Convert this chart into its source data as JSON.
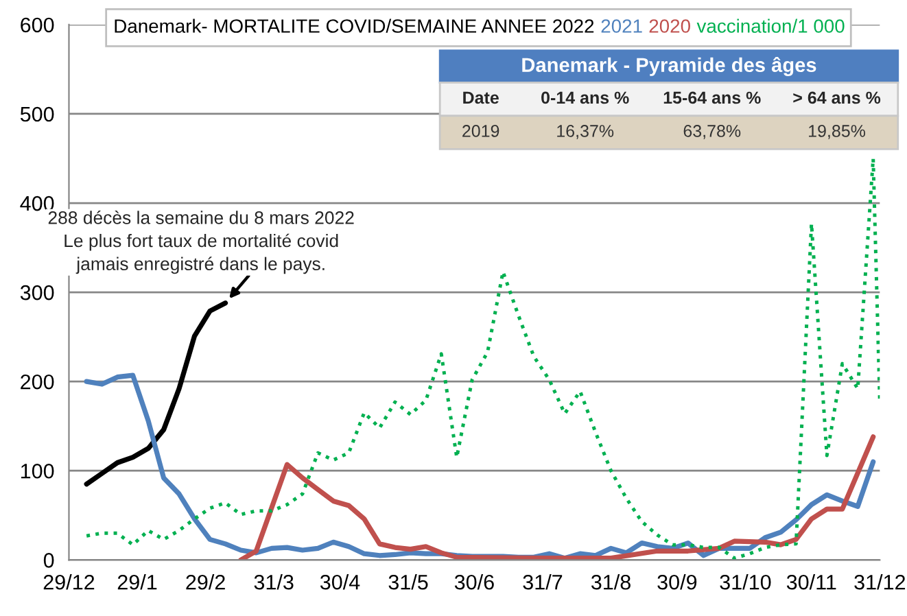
{
  "chart_data": {
    "type": "line",
    "title": "Danemark- MORTALITE COVID/SEMAINE ANNEE",
    "xlim": [
      "2019-12-29",
      "2020-12-31"
    ],
    "xticks": [
      {
        "value": "2019-12-29",
        "label": "29/12"
      },
      {
        "value": "2020-01-29",
        "label": "29/1"
      },
      {
        "value": "2020-02-29",
        "label": "29/2"
      },
      {
        "value": "2020-03-31",
        "label": "31/3"
      },
      {
        "value": "2020-04-30",
        "label": "30/4"
      },
      {
        "value": "2020-05-31",
        "label": "31/5"
      },
      {
        "value": "2020-06-30",
        "label": "30/6"
      },
      {
        "value": "2020-07-31",
        "label": "31/7"
      },
      {
        "value": "2020-08-31",
        "label": "31/8"
      },
      {
        "value": "2020-09-30",
        "label": "30/9"
      },
      {
        "value": "2020-10-31",
        "label": "31/10"
      },
      {
        "value": "2020-11-30",
        "label": "30/11"
      },
      {
        "value": "2020-12-31",
        "label": "31/12"
      }
    ],
    "ylim": [
      0,
      600
    ],
    "yticks": [
      0,
      100,
      200,
      300,
      400,
      500,
      600
    ],
    "grid": "y",
    "legend": false,
    "marker": "none",
    "x": [
      "2020-01-06",
      "2020-01-13",
      "2020-01-20",
      "2020-01-27",
      "2020-02-03",
      "2020-02-10",
      "2020-02-17",
      "2020-02-24",
      "2020-03-02",
      "2020-03-09",
      "2020-03-16",
      "2020-03-23",
      "2020-03-30",
      "2020-04-06",
      "2020-04-13",
      "2020-04-20",
      "2020-04-27",
      "2020-05-04",
      "2020-05-11",
      "2020-05-18",
      "2020-05-25",
      "2020-06-01",
      "2020-06-08",
      "2020-06-15",
      "2020-06-22",
      "2020-06-29",
      "2020-07-06",
      "2020-07-13",
      "2020-07-20",
      "2020-07-27",
      "2020-08-03",
      "2020-08-10",
      "2020-08-17",
      "2020-08-24",
      "2020-08-31",
      "2020-09-07",
      "2020-09-14",
      "2020-09-21",
      "2020-09-28",
      "2020-10-05",
      "2020-10-12",
      "2020-10-19",
      "2020-10-26",
      "2020-11-02",
      "2020-11-09",
      "2020-11-16",
      "2020-11-23",
      "2020-11-30",
      "2020-12-07",
      "2020-12-14",
      "2020-12-21",
      "2020-12-28"
    ],
    "series": [
      {
        "name": "2022",
        "color": "#000000",
        "line_style": "solid",
        "values": [
          85,
          97,
          109,
          115,
          125,
          146,
          192,
          251,
          279,
          288,
          null,
          null,
          null,
          null,
          null,
          null,
          null,
          null,
          null,
          null,
          null,
          null,
          null,
          null,
          null,
          null,
          null,
          null,
          null,
          null,
          null,
          null,
          null,
          null,
          null,
          null,
          null,
          null,
          null,
          null,
          null,
          null,
          null,
          null,
          null,
          null,
          null,
          null,
          null,
          null,
          null,
          null
        ]
      },
      {
        "name": "2021",
        "color": "#4f81bd",
        "line_style": "solid",
        "values": [
          200,
          197,
          205,
          207,
          156,
          92,
          74,
          46,
          23,
          18,
          11,
          8,
          13,
          14,
          11,
          13,
          20,
          15,
          7,
          5,
          6,
          8,
          7,
          7,
          5,
          4,
          4,
          4,
          3,
          3,
          7,
          2,
          7,
          5,
          13,
          8,
          19,
          15,
          13,
          19,
          5,
          13,
          13,
          13,
          25,
          31,
          45,
          62,
          73,
          66,
          60,
          110
        ]
      },
      {
        "name": "2020",
        "color": "#c0504d",
        "line_style": "solid",
        "x": [
          "2020-03-16",
          "2020-03-23",
          "2020-04-06",
          "2020-04-13",
          "2020-04-20",
          "2020-04-27",
          "2020-05-04",
          "2020-05-11",
          "2020-05-18",
          "2020-05-25",
          "2020-06-01",
          "2020-06-08",
          "2020-06-15",
          "2020-06-22",
          "2020-08-03",
          "2020-08-31",
          "2020-09-21",
          "2020-10-05",
          "2020-10-19",
          "2020-10-26",
          "2020-11-09",
          "2020-11-16",
          "2020-11-23",
          "2020-11-30",
          "2020-12-07",
          "2020-12-14",
          "2020-12-28"
        ],
        "values": [
          0,
          10,
          107,
          92,
          79,
          66,
          61,
          46,
          18,
          14,
          12,
          15,
          8,
          3,
          2,
          2,
          10,
          10,
          13,
          21,
          20,
          17,
          23,
          46,
          57,
          57,
          138
        ]
      },
      {
        "name": "vaccination/1 000",
        "color": "#00b050",
        "line_style": "dotted",
        "x": [
          "2020-01-06",
          "2020-01-13",
          "2020-01-20",
          "2020-01-27",
          "2020-02-03",
          "2020-02-10",
          "2020-02-17",
          "2020-02-24",
          "2020-03-02",
          "2020-03-09",
          "2020-03-16",
          "2020-03-23",
          "2020-03-30",
          "2020-04-06",
          "2020-04-13",
          "2020-04-20",
          "2020-04-27",
          "2020-05-04",
          "2020-05-11",
          "2020-05-18",
          "2020-05-25",
          "2020-06-01",
          "2020-06-08",
          "2020-06-15",
          "2020-06-22",
          "2020-06-29",
          "2020-07-06",
          "2020-07-13",
          "2020-07-20",
          "2020-07-27",
          "2020-08-03",
          "2020-08-10",
          "2020-08-17",
          "2020-08-24",
          "2020-08-31",
          "2020-09-07",
          "2020-09-14",
          "2020-09-21",
          "2020-09-28",
          "2020-10-05",
          "2020-10-12",
          "2020-10-19",
          "2020-10-26",
          "2020-11-02",
          "2020-11-09",
          "2020-11-16",
          "2020-11-23",
          "2020-11-30",
          "2020-12-07",
          "2020-12-14",
          "2020-12-21",
          "2020-12-28",
          "2020-12-31"
        ],
        "values": [
          27,
          30,
          30,
          17,
          33,
          23,
          33,
          46,
          58,
          64,
          51,
          55,
          55,
          62,
          74,
          120,
          112,
          120,
          165,
          148,
          177,
          163,
          179,
          231,
          115,
          202,
          233,
          323,
          274,
          228,
          202,
          164,
          189,
          143,
          100,
          69,
          43,
          28,
          17,
          17,
          14,
          14,
          2,
          7,
          14,
          17,
          18,
          377,
          117,
          220,
          192,
          450,
          177
        ]
      }
    ],
    "annotations": [
      {
        "text": "288 décès la semaine du 8 mars 2022\nLe plus fort taux de mortalité covid\njamais enregistré dans le pays.",
        "x": "2020-03-09",
        "y": 288
      },
      "Danemark - Pyramide des âges",
      "Date",
      "0-14 ans %",
      "15-64 ans %",
      "> 64 ans %",
      "2019",
      "16,37%",
      "63,78%",
      "19,85%"
    ]
  }
}
